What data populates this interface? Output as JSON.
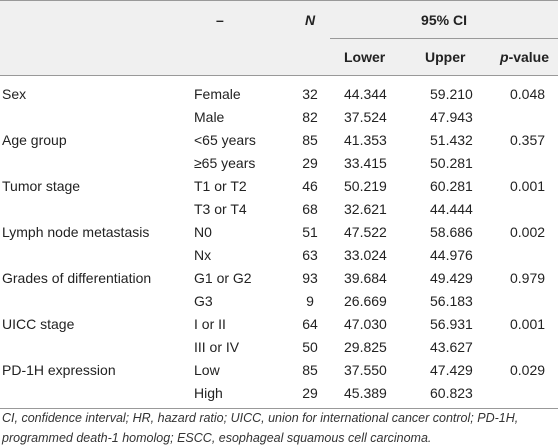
{
  "header": {
    "sub": "–",
    "n": "N",
    "ci": "95% CI",
    "lower": "Lower",
    "upper": "Upper",
    "p": "p-value"
  },
  "groups": [
    {
      "label": "Sex",
      "rows": [
        [
          "Female",
          "32",
          "44.344",
          "59.210",
          "0.048"
        ],
        [
          "Male",
          "82",
          "37.524",
          "47.943"
        ]
      ]
    },
    {
      "label": "Age group",
      "rows": [
        [
          "<65 years",
          "85",
          "41.353",
          "51.432",
          "0.357"
        ],
        [
          "≥65 years",
          "29",
          "33.415",
          "50.281"
        ]
      ]
    },
    {
      "label": "Tumor stage",
      "rows": [
        [
          "T1 or T2",
          "46",
          "50.219",
          "60.281",
          "0.001"
        ],
        [
          "T3 or T4",
          "68",
          "32.621",
          "44.444"
        ]
      ]
    },
    {
      "label": "Lymph node metastasis",
      "rows": [
        [
          "N0",
          "51",
          "47.522",
          "58.686",
          "0.002"
        ],
        [
          "Nx",
          "63",
          "33.024",
          "44.976"
        ]
      ]
    },
    {
      "label": "Grades of differentiation",
      "rows": [
        [
          "G1 or G2",
          "93",
          "39.684",
          "49.429",
          "0.979"
        ],
        [
          "G3",
          "9",
          "26.669",
          "56.183"
        ]
      ]
    },
    {
      "label": "UICC stage",
      "rows": [
        [
          "I or II",
          "64",
          "47.030",
          "56.931",
          "0.001"
        ],
        [
          "III or IV",
          "50",
          "29.825",
          "43.627"
        ]
      ]
    },
    {
      "label": "PD-1H expression",
      "rows": [
        [
          "Low",
          "85",
          "37.550",
          "47.429",
          "0.029"
        ],
        [
          "High",
          "29",
          "45.389",
          "60.823"
        ]
      ]
    }
  ],
  "footnote": "CI, confidence interval; HR, hazard ratio; UICC, union for international cancer control; PD-1H, programmed death-1 homolog; ESCC, esophageal squamous cell carcinoma."
}
